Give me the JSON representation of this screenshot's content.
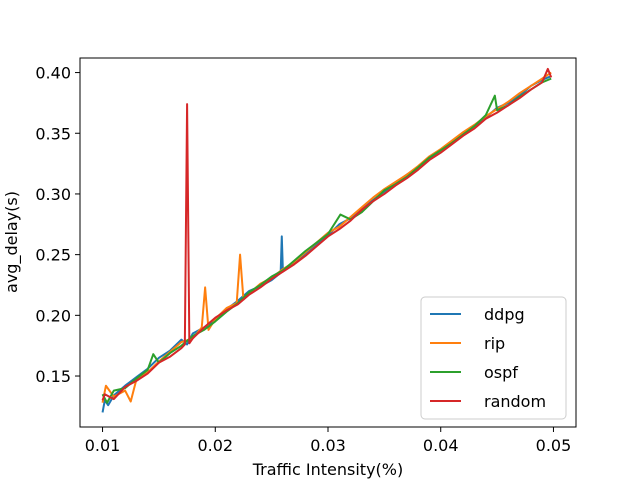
{
  "chart_data": {
    "type": "line",
    "title": "",
    "xlabel": "Traffic Intensity(%)",
    "ylabel": "avg_delay(s)",
    "xlim": [
      0.008,
      0.052
    ],
    "ylim": [
      0.108,
      0.412
    ],
    "x_ticks": [
      0.01,
      0.02,
      0.03,
      0.04,
      0.05
    ],
    "x_tick_labels": [
      "0.01",
      "0.02",
      "0.03",
      "0.04",
      "0.05"
    ],
    "y_ticks": [
      0.15,
      0.2,
      0.25,
      0.3,
      0.35,
      0.4
    ],
    "y_tick_labels": [
      "0.15",
      "0.20",
      "0.25",
      "0.30",
      "0.35",
      "0.40"
    ],
    "grid": false,
    "legend_position": "lower-right",
    "series": [
      {
        "name": "ddpg",
        "color": "#1f77b4",
        "x": [
          0.01,
          0.0102,
          0.0105,
          0.011,
          0.012,
          0.013,
          0.014,
          0.015,
          0.016,
          0.017,
          0.0175,
          0.018,
          0.019,
          0.02,
          0.021,
          0.022,
          0.023,
          0.024,
          0.025,
          0.0258,
          0.0259,
          0.026,
          0.027,
          0.028,
          0.029,
          0.03,
          0.031,
          0.032,
          0.033,
          0.034,
          0.035,
          0.036,
          0.037,
          0.038,
          0.039,
          0.04,
          0.041,
          0.042,
          0.043,
          0.044,
          0.045,
          0.046,
          0.047,
          0.048,
          0.049,
          0.0498
        ],
        "values": [
          0.12,
          0.13,
          0.126,
          0.134,
          0.142,
          0.149,
          0.156,
          0.165,
          0.171,
          0.18,
          0.176,
          0.185,
          0.19,
          0.196,
          0.205,
          0.212,
          0.22,
          0.224,
          0.229,
          0.235,
          0.265,
          0.236,
          0.243,
          0.251,
          0.259,
          0.266,
          0.275,
          0.28,
          0.288,
          0.295,
          0.302,
          0.309,
          0.316,
          0.321,
          0.329,
          0.336,
          0.343,
          0.35,
          0.356,
          0.363,
          0.371,
          0.375,
          0.381,
          0.389,
          0.394,
          0.397
        ]
      },
      {
        "name": "rip",
        "color": "#ff7f0e",
        "x": [
          0.01,
          0.0103,
          0.011,
          0.012,
          0.0125,
          0.013,
          0.014,
          0.015,
          0.016,
          0.017,
          0.018,
          0.0188,
          0.0191,
          0.0194,
          0.02,
          0.021,
          0.0219,
          0.0222,
          0.0225,
          0.023,
          0.024,
          0.025,
          0.026,
          0.027,
          0.028,
          0.029,
          0.03,
          0.031,
          0.032,
          0.033,
          0.034,
          0.035,
          0.036,
          0.037,
          0.038,
          0.039,
          0.04,
          0.041,
          0.042,
          0.043,
          0.044,
          0.045,
          0.046,
          0.047,
          0.048,
          0.049,
          0.0498
        ],
        "values": [
          0.128,
          0.142,
          0.133,
          0.138,
          0.129,
          0.147,
          0.153,
          0.162,
          0.17,
          0.178,
          0.181,
          0.19,
          0.223,
          0.188,
          0.197,
          0.206,
          0.21,
          0.25,
          0.213,
          0.218,
          0.226,
          0.231,
          0.238,
          0.244,
          0.252,
          0.26,
          0.268,
          0.273,
          0.281,
          0.289,
          0.297,
          0.304,
          0.31,
          0.316,
          0.323,
          0.331,
          0.337,
          0.344,
          0.351,
          0.357,
          0.364,
          0.37,
          0.376,
          0.383,
          0.389,
          0.395,
          0.4
        ]
      },
      {
        "name": "ospf",
        "color": "#2ca02c",
        "x": [
          0.01,
          0.0104,
          0.011,
          0.012,
          0.013,
          0.014,
          0.0145,
          0.015,
          0.016,
          0.017,
          0.018,
          0.019,
          0.02,
          0.021,
          0.022,
          0.023,
          0.024,
          0.025,
          0.026,
          0.027,
          0.028,
          0.029,
          0.03,
          0.0311,
          0.032,
          0.033,
          0.034,
          0.035,
          0.036,
          0.037,
          0.038,
          0.039,
          0.04,
          0.041,
          0.042,
          0.043,
          0.044,
          0.0448,
          0.045,
          0.046,
          0.047,
          0.048,
          0.049,
          0.0498
        ],
        "values": [
          0.135,
          0.128,
          0.138,
          0.14,
          0.148,
          0.155,
          0.168,
          0.161,
          0.169,
          0.175,
          0.183,
          0.188,
          0.195,
          0.203,
          0.21,
          0.219,
          0.225,
          0.232,
          0.237,
          0.245,
          0.253,
          0.26,
          0.267,
          0.283,
          0.279,
          0.285,
          0.294,
          0.303,
          0.308,
          0.314,
          0.322,
          0.33,
          0.336,
          0.342,
          0.349,
          0.356,
          0.365,
          0.381,
          0.369,
          0.373,
          0.38,
          0.386,
          0.392,
          0.395
        ]
      },
      {
        "name": "random",
        "color": "#d62728",
        "x": [
          0.01,
          0.0102,
          0.011,
          0.012,
          0.013,
          0.014,
          0.015,
          0.016,
          0.017,
          0.0173,
          0.0175,
          0.0177,
          0.018,
          0.019,
          0.02,
          0.021,
          0.022,
          0.023,
          0.024,
          0.025,
          0.026,
          0.027,
          0.028,
          0.029,
          0.03,
          0.031,
          0.032,
          0.033,
          0.034,
          0.035,
          0.036,
          0.037,
          0.038,
          0.039,
          0.04,
          0.041,
          0.042,
          0.043,
          0.044,
          0.045,
          0.046,
          0.047,
          0.048,
          0.049,
          0.0495,
          0.0498
        ],
        "values": [
          0.13,
          0.135,
          0.131,
          0.141,
          0.146,
          0.152,
          0.161,
          0.166,
          0.173,
          0.176,
          0.374,
          0.177,
          0.181,
          0.19,
          0.198,
          0.204,
          0.209,
          0.217,
          0.223,
          0.23,
          0.236,
          0.242,
          0.249,
          0.257,
          0.265,
          0.271,
          0.278,
          0.287,
          0.294,
          0.3,
          0.307,
          0.313,
          0.32,
          0.328,
          0.334,
          0.341,
          0.348,
          0.354,
          0.362,
          0.367,
          0.373,
          0.379,
          0.386,
          0.392,
          0.403,
          0.396
        ]
      }
    ]
  }
}
